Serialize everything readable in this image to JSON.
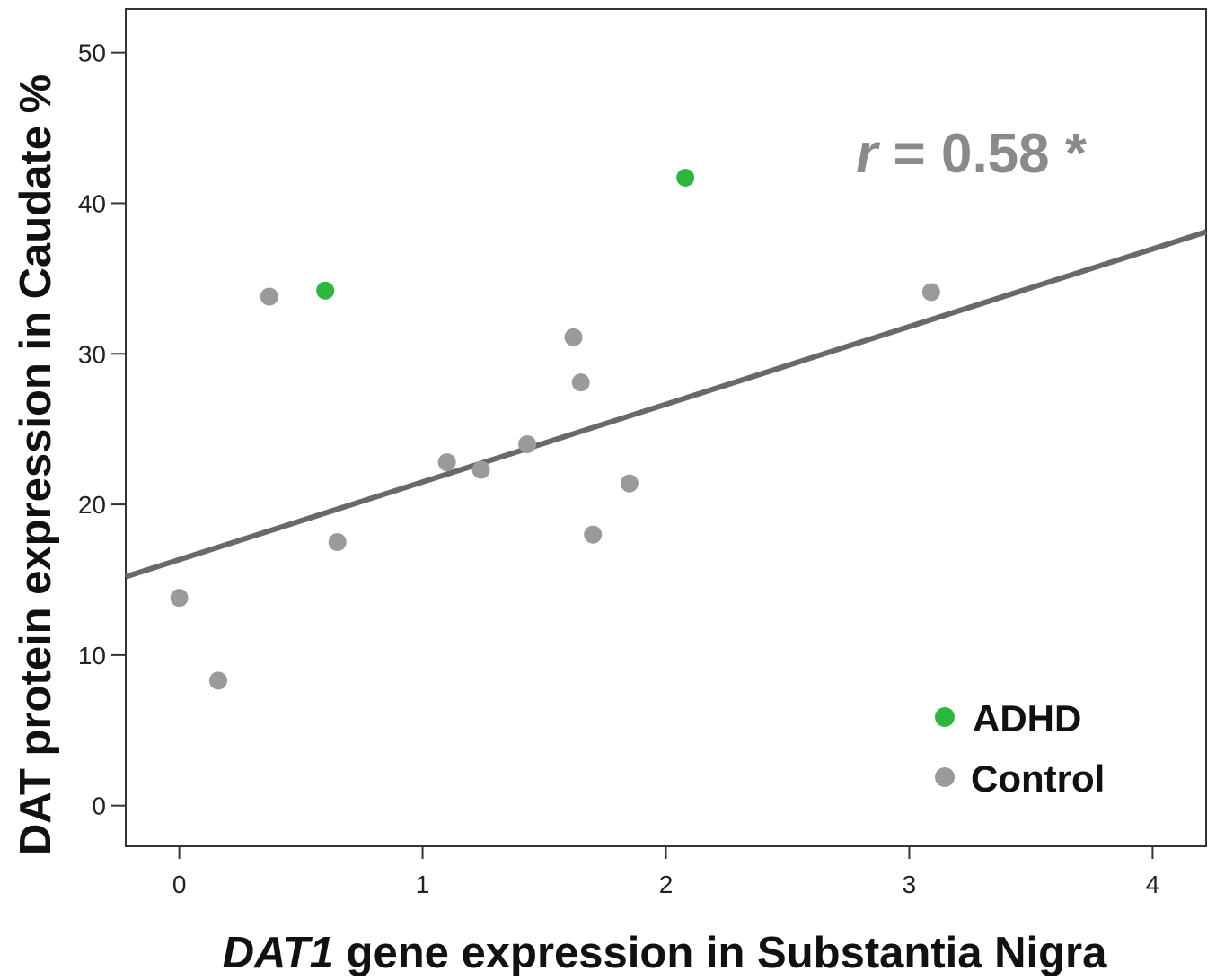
{
  "chart_data": {
    "type": "scatter",
    "xlabel_italic": "DAT1",
    "xlabel_rest": " gene expression in Substantia Nigra",
    "ylabel": "DAT protein expression in Caudate %",
    "xlim": [
      -0.22,
      4.22
    ],
    "ylim": [
      -2.7,
      52.9
    ],
    "xticks": [
      0,
      1,
      2,
      3,
      4
    ],
    "yticks": [
      0,
      10,
      20,
      30,
      40,
      50
    ],
    "grid": false,
    "legend_position": "bottom-right",
    "series": [
      {
        "name": "ADHD",
        "color": "#2db83d",
        "points": [
          [
            0.6,
            34.2
          ],
          [
            2.08,
            41.7
          ]
        ]
      },
      {
        "name": "Control",
        "color": "#9a9a9a",
        "points": [
          [
            0.0,
            13.8
          ],
          [
            0.16,
            8.3
          ],
          [
            0.37,
            33.8
          ],
          [
            0.65,
            17.5
          ],
          [
            1.1,
            22.8
          ],
          [
            1.24,
            22.3
          ],
          [
            1.43,
            24.0
          ],
          [
            1.62,
            31.1
          ],
          [
            1.65,
            28.1
          ],
          [
            1.7,
            18.0
          ],
          [
            1.85,
            21.4
          ],
          [
            3.09,
            34.1
          ]
        ]
      }
    ],
    "fit_line": {
      "x": [
        -0.22,
        4.22
      ],
      "y": [
        15.2,
        38.1
      ],
      "color": "#6b6869"
    },
    "annotation": {
      "italic": "r",
      "rest": " = 0.58 *",
      "color": "#8a8a8a"
    }
  }
}
